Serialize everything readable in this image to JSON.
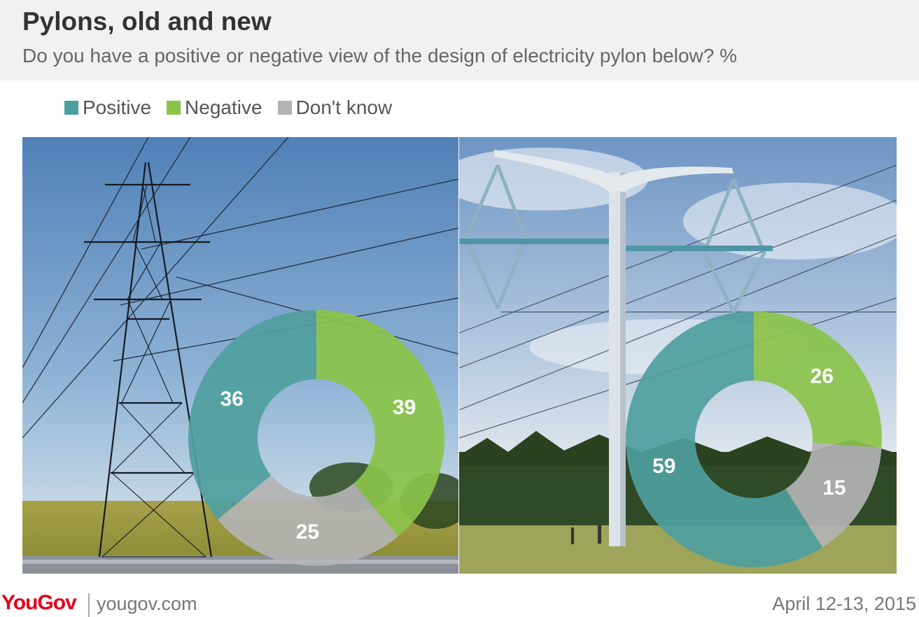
{
  "header": {
    "title": "Pylons, old and new",
    "subtitle": "Do you have a positive or negative view of the design of electricity pylon below? %"
  },
  "legend": [
    {
      "label": "Positive",
      "color": "#4f9e9e"
    },
    {
      "label": "Negative",
      "color": "#8bc34a"
    },
    {
      "label": "Don't know",
      "color": "#b3b3b3"
    }
  ],
  "photos": {
    "left": "lattice-pylon-photo",
    "right": "t-pylon-photo"
  },
  "chart_data": [
    {
      "type": "pie",
      "categories": [
        "Positive",
        "Negative",
        "Don't know"
      ],
      "values": [
        36,
        39,
        25
      ],
      "colors": [
        "#4f9e9e",
        "#8bc34a",
        "#b3b3b3"
      ],
      "start": "Positive ends at top; Negative starts at top going clockwise"
    },
    {
      "type": "pie",
      "categories": [
        "Positive",
        "Negative",
        "Don't know"
      ],
      "values": [
        59,
        26,
        15
      ],
      "colors": [
        "#4f9e9e",
        "#8bc34a",
        "#b3b3b3"
      ],
      "start": "Negative starts at top going clockwise"
    }
  ],
  "footer": {
    "brand": "YouGov",
    "site": "yougov.com",
    "date": "April 12-13, 2015"
  }
}
